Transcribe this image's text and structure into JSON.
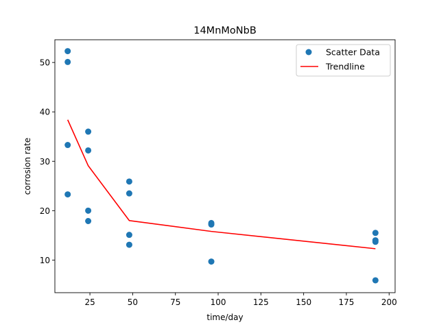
{
  "chart_data": {
    "type": "scatter",
    "title": "14MnMoNbB",
    "xlabel": "time/day",
    "ylabel": "corrosion rate",
    "xlim": [
      4.5,
      203.5
    ],
    "ylim": [
      3.4,
      54.6
    ],
    "xticks": [
      25,
      50,
      75,
      100,
      125,
      150,
      175,
      200
    ],
    "yticks": [
      10,
      20,
      30,
      40,
      50
    ],
    "grid": false,
    "legend_position": "top-right",
    "series": [
      {
        "name": "Scatter Data",
        "kind": "scatter",
        "color": "#1f77b4",
        "points": [
          [
            12,
            52.3
          ],
          [
            12,
            50.1
          ],
          [
            12,
            33.3
          ],
          [
            12,
            23.3
          ],
          [
            24,
            36.0
          ],
          [
            24,
            32.2
          ],
          [
            24,
            20.0
          ],
          [
            24,
            17.9
          ],
          [
            48,
            25.9
          ],
          [
            48,
            23.5
          ],
          [
            48,
            15.1
          ],
          [
            48,
            13.1
          ],
          [
            96,
            17.5
          ],
          [
            96,
            17.2
          ],
          [
            96,
            9.7
          ],
          [
            192,
            15.5
          ],
          [
            192,
            14.0
          ],
          [
            192,
            13.7
          ],
          [
            192,
            5.9
          ]
        ]
      },
      {
        "name": "Trendline",
        "kind": "line",
        "color": "#ff0000",
        "points": [
          [
            12,
            38.4
          ],
          [
            24,
            29.1
          ],
          [
            48,
            18.0
          ],
          [
            96,
            15.8
          ],
          [
            192,
            12.3
          ]
        ]
      }
    ]
  }
}
